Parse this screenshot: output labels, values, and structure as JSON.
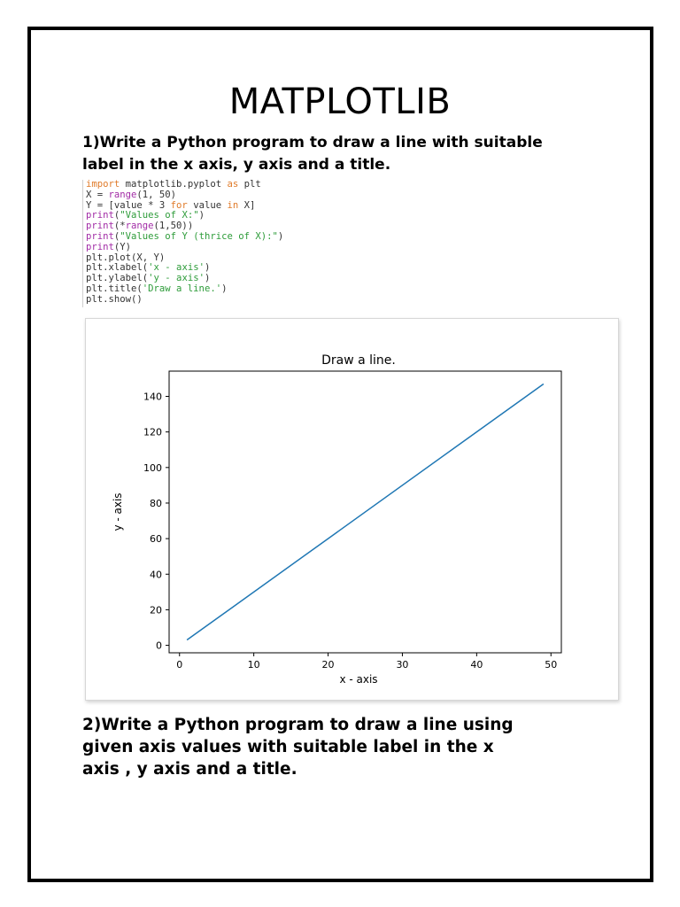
{
  "page": {
    "title": "MATPLOTLIB",
    "question1": [
      "1)Write a Python program to draw a line with suitable",
      "label in the x axis, y axis and a title."
    ],
    "question2": [
      "2)Write a Python program to draw a line using",
      "given axis values with suitable label in the x",
      "axis , y axis and a title."
    ]
  },
  "code_lines": [
    [
      {
        "t": "import",
        "c": "kw"
      },
      {
        "t": " matplotlib.pyplot ",
        "c": "plain"
      },
      {
        "t": "as",
        "c": "kw"
      },
      {
        "t": " plt",
        "c": "plain"
      }
    ],
    [
      {
        "t": "X = ",
        "c": "plain"
      },
      {
        "t": "range",
        "c": "fn"
      },
      {
        "t": "(1, 50)",
        "c": "plain"
      }
    ],
    [
      {
        "t": "Y = [value * 3 ",
        "c": "plain"
      },
      {
        "t": "for",
        "c": "kw"
      },
      {
        "t": " value ",
        "c": "plain"
      },
      {
        "t": "in",
        "c": "kw"
      },
      {
        "t": " X]",
        "c": "plain"
      }
    ],
    [
      {
        "t": "print",
        "c": "fn"
      },
      {
        "t": "(",
        "c": "plain"
      },
      {
        "t": "\"Values of X:\"",
        "c": "str"
      },
      {
        "t": ")",
        "c": "plain"
      }
    ],
    [
      {
        "t": "print",
        "c": "fn"
      },
      {
        "t": "(*",
        "c": "plain"
      },
      {
        "t": "range",
        "c": "fn"
      },
      {
        "t": "(1,50))",
        "c": "plain"
      }
    ],
    [
      {
        "t": "print",
        "c": "fn"
      },
      {
        "t": "(",
        "c": "plain"
      },
      {
        "t": "\"Values of Y (thrice of X):\"",
        "c": "str"
      },
      {
        "t": ")",
        "c": "plain"
      }
    ],
    [
      {
        "t": "print",
        "c": "fn"
      },
      {
        "t": "(Y)",
        "c": "plain"
      }
    ],
    [
      {
        "t": "plt.plot(X, Y)",
        "c": "plain"
      }
    ],
    [
      {
        "t": "plt.xlabel(",
        "c": "plain"
      },
      {
        "t": "'x - axis'",
        "c": "str"
      },
      {
        "t": ")",
        "c": "plain"
      }
    ],
    [
      {
        "t": "plt.ylabel(",
        "c": "plain"
      },
      {
        "t": "'y - axis'",
        "c": "str"
      },
      {
        "t": ")",
        "c": "plain"
      }
    ],
    [
      {
        "t": "plt.title(",
        "c": "plain"
      },
      {
        "t": "'Draw a line.'",
        "c": "str"
      },
      {
        "t": ")",
        "c": "plain"
      }
    ],
    [
      {
        "t": "plt.show()",
        "c": "plain"
      }
    ]
  ],
  "colors": {
    "kw": "#e07b2a",
    "fn": "#a22ca6",
    "str": "#2e9c3a",
    "line": "#1f77b4"
  },
  "chart_data": {
    "type": "line",
    "title": "Draw a line.",
    "xlabel": "x - axis",
    "ylabel": "y - axis",
    "x_range": [
      1,
      49
    ],
    "y_formula": "y = 3x",
    "series": [
      {
        "x": [
          1,
          49
        ],
        "y": [
          3,
          147
        ]
      }
    ],
    "xlim": [
      -1.4,
      51.4
    ],
    "ylim": [
      -4.2,
      154.2
    ],
    "xticks": [
      0,
      10,
      20,
      30,
      40,
      50
    ],
    "yticks": [
      0,
      20,
      40,
      60,
      80,
      100,
      120,
      140
    ],
    "grid": false,
    "legend": "none"
  }
}
